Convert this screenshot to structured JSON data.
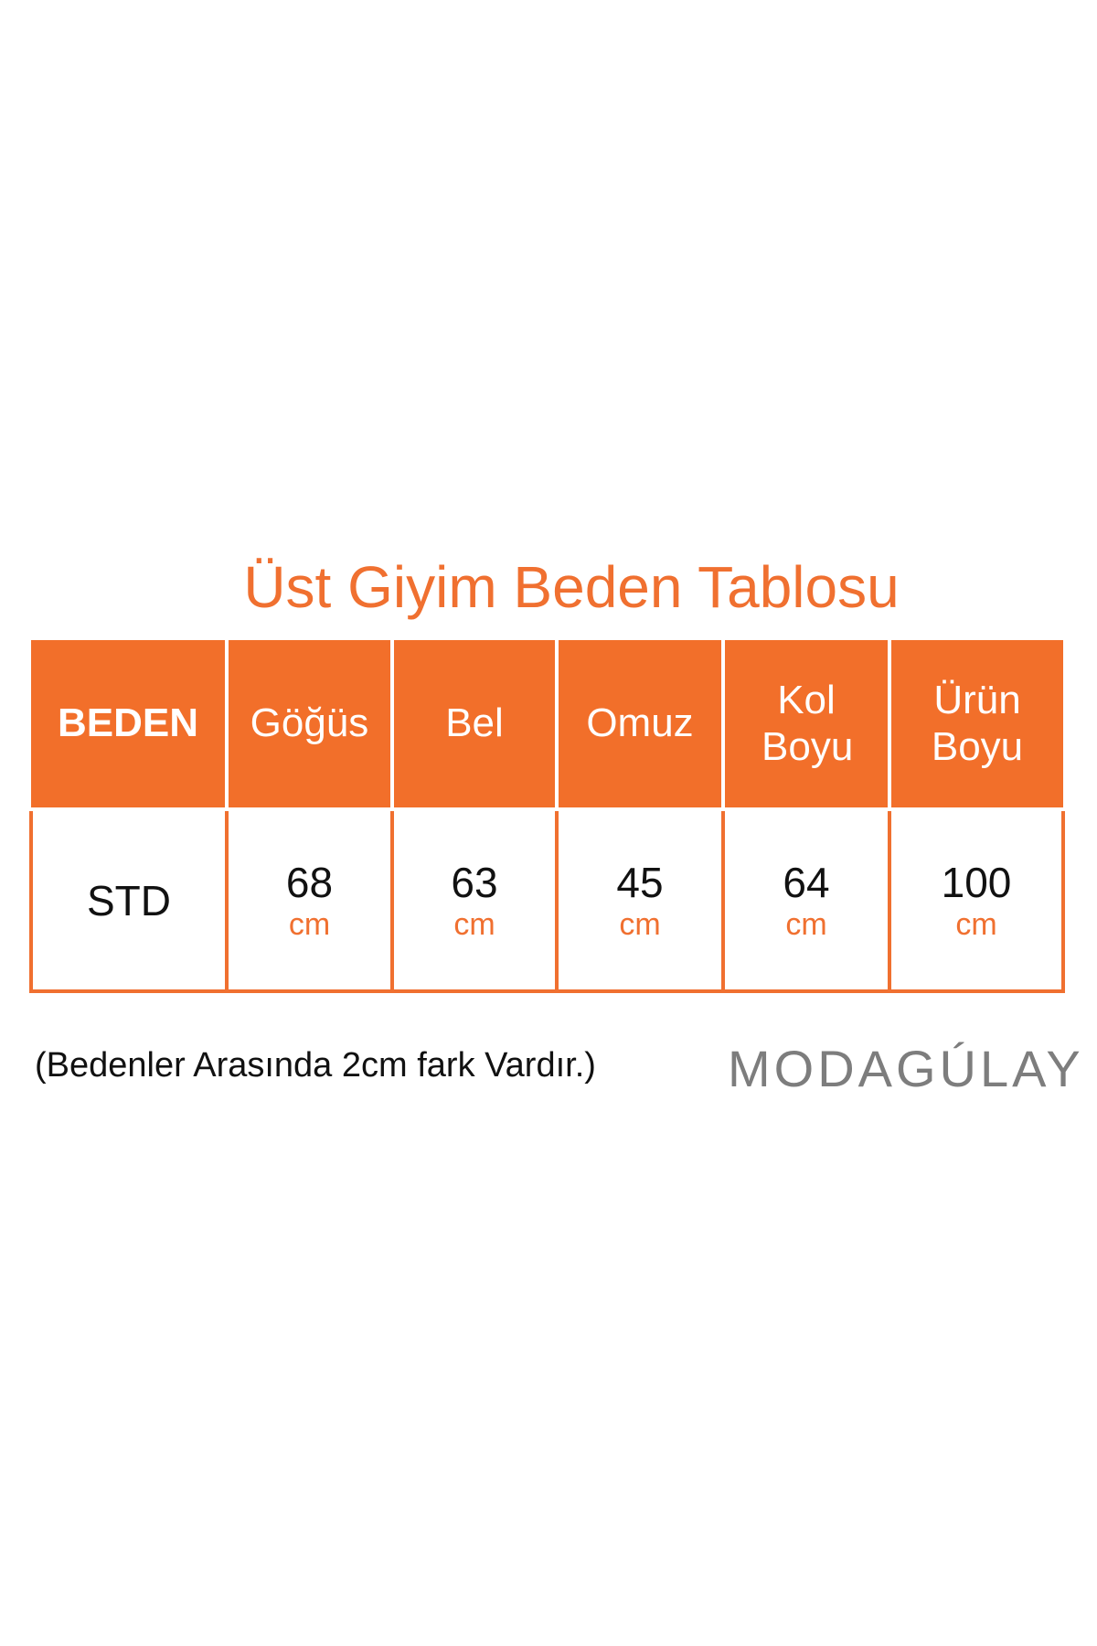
{
  "title": "Üst Giyim Beden Tablosu",
  "headers": [
    "BEDEN",
    "Göğüs",
    "Bel",
    "Omuz",
    "Kol Boyu",
    "Ürün Boyu"
  ],
  "row": {
    "size": "STD",
    "values": [
      "68",
      "63",
      "45",
      "64",
      "100"
    ],
    "unit": "cm"
  },
  "note": "(Bedenler Arasında 2cm fark Vardır.)",
  "logo": "MODAGÚLAY",
  "colors": {
    "accent": "#f26f2a",
    "text": "#111111",
    "logo": "#7d7d7d"
  }
}
